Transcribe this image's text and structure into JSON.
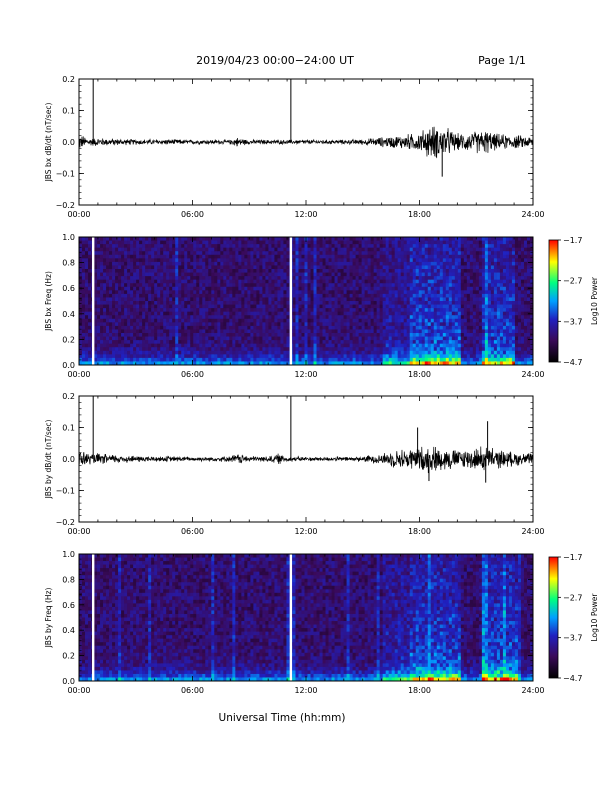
{
  "header": {
    "title": "2019/04/23  00:00−24:00 UT",
    "page": "Page 1/1"
  },
  "colors": {
    "trace": "#000000",
    "colormap": [
      "#000000",
      "#3a0a5a",
      "#2020c0",
      "#00a0ff",
      "#00ff80",
      "#ffff00",
      "#ff0000"
    ],
    "data_gap": "#ffffff"
  },
  "chart_data": [
    {
      "type": "line",
      "panel": "bx_dbdt",
      "ylabel": "JBS bx dB/dt (nT/sec)",
      "xlim": [
        0,
        24
      ],
      "ylim": [
        -0.2,
        0.2
      ],
      "yticks": [
        "0.2",
        "0.1",
        "0.0",
        "−0.1",
        "−0.2"
      ],
      "xticks": [
        "00:00",
        "06:00",
        "12:00",
        "18:00",
        "24:00"
      ],
      "x": [
        0.0,
        0.5,
        1.0,
        2.0,
        3.0,
        4.0,
        5.0,
        6.0,
        7.0,
        8.0,
        8.3,
        9.0,
        10.0,
        11.0,
        12.0,
        13.0,
        14.0,
        15.0,
        16.0,
        17.0,
        18.0,
        18.5,
        19.0,
        19.5,
        20.0,
        21.0,
        21.5,
        22.0,
        23.0,
        24.0
      ],
      "envelope": [
        0.03,
        0.015,
        0.015,
        0.012,
        0.01,
        0.01,
        0.01,
        0.008,
        0.008,
        0.008,
        0.018,
        0.008,
        0.008,
        0.008,
        0.008,
        0.008,
        0.008,
        0.01,
        0.018,
        0.025,
        0.035,
        0.06,
        0.06,
        0.05,
        0.03,
        0.04,
        0.045,
        0.03,
        0.025,
        0.02
      ],
      "spikes": [
        {
          "x": 0.75,
          "y": 0.2
        },
        {
          "x": 11.2,
          "y": 0.2
        },
        {
          "x": 19.2,
          "y": -0.11
        }
      ]
    },
    {
      "type": "heatmap",
      "panel": "bx_spectrogram",
      "ylabel": "JBS bx Freq (Hz)",
      "xlim": [
        0,
        24
      ],
      "ylim": [
        0,
        1.0
      ],
      "yticks": [
        "1.0",
        "0.8",
        "0.6",
        "0.4",
        "0.2",
        "0.0"
      ],
      "xticks": [
        "00:00",
        "06:00",
        "12:00",
        "18:00",
        "24:00"
      ],
      "gaps": [
        0.75,
        11.2
      ],
      "colorbar": {
        "label": "Log10 Power",
        "ticks": [
          "−1.7",
          "−2.7",
          "−3.7",
          "−4.7"
        ],
        "range": [
          -4.7,
          -1.7
        ]
      },
      "activity": [
        {
          "start": 17.5,
          "end": 20.2,
          "level": 0.8
        },
        {
          "start": 21.3,
          "end": 23.0,
          "level": 0.7
        },
        {
          "start": 16.0,
          "end": 17.5,
          "level": 0.35
        }
      ]
    },
    {
      "type": "line",
      "panel": "by_dbdt",
      "ylabel": "JBS by dB/dt (nT/sec)",
      "xlim": [
        0,
        24
      ],
      "ylim": [
        -0.2,
        0.2
      ],
      "yticks": [
        "0.2",
        "0.1",
        "0.0",
        "−0.1",
        "−0.2"
      ],
      "xticks": [
        "00:00",
        "06:00",
        "12:00",
        "18:00",
        "24:00"
      ],
      "x": [
        0.0,
        0.5,
        1.0,
        2.0,
        3.0,
        4.0,
        5.0,
        6.0,
        7.0,
        8.0,
        8.3,
        9.0,
        10.0,
        10.5,
        11.0,
        12.0,
        13.0,
        14.0,
        15.0,
        16.0,
        17.0,
        18.0,
        18.5,
        19.0,
        19.5,
        20.0,
        21.0,
        21.5,
        22.0,
        23.0,
        24.0
      ],
      "envelope": [
        0.035,
        0.02,
        0.02,
        0.015,
        0.012,
        0.01,
        0.01,
        0.008,
        0.008,
        0.01,
        0.02,
        0.01,
        0.01,
        0.02,
        0.01,
        0.008,
        0.008,
        0.008,
        0.01,
        0.02,
        0.035,
        0.045,
        0.05,
        0.045,
        0.04,
        0.035,
        0.04,
        0.05,
        0.035,
        0.025,
        0.02
      ],
      "spikes": [
        {
          "x": 0.75,
          "y": 0.2
        },
        {
          "x": 11.2,
          "y": 0.2
        },
        {
          "x": 17.9,
          "y": 0.1
        },
        {
          "x": 21.6,
          "y": 0.12
        },
        {
          "x": 18.5,
          "y": -0.07
        },
        {
          "x": 21.5,
          "y": -0.075
        }
      ]
    },
    {
      "type": "heatmap",
      "panel": "by_spectrogram",
      "ylabel": "JBS by Freq (Hz)",
      "xlim": [
        0,
        24
      ],
      "ylim": [
        0,
        1.0
      ],
      "yticks": [
        "1.0",
        "0.8",
        "0.6",
        "0.4",
        "0.2",
        "0.0"
      ],
      "xticks": [
        "00:00",
        "06:00",
        "12:00",
        "18:00",
        "24:00"
      ],
      "gaps": [
        0.75,
        11.2
      ],
      "colorbar": {
        "label": "Log10 Power",
        "ticks": [
          "−1.7",
          "−2.7",
          "−3.7",
          "−4.7"
        ],
        "range": [
          -4.7,
          -1.7
        ]
      },
      "activity": [
        {
          "start": 17.5,
          "end": 20.2,
          "level": 0.75
        },
        {
          "start": 21.3,
          "end": 23.2,
          "level": 0.8
        },
        {
          "start": 16.0,
          "end": 17.5,
          "level": 0.4
        }
      ]
    }
  ],
  "footer": {
    "xlabel": "Universal Time (hh:mm)"
  }
}
